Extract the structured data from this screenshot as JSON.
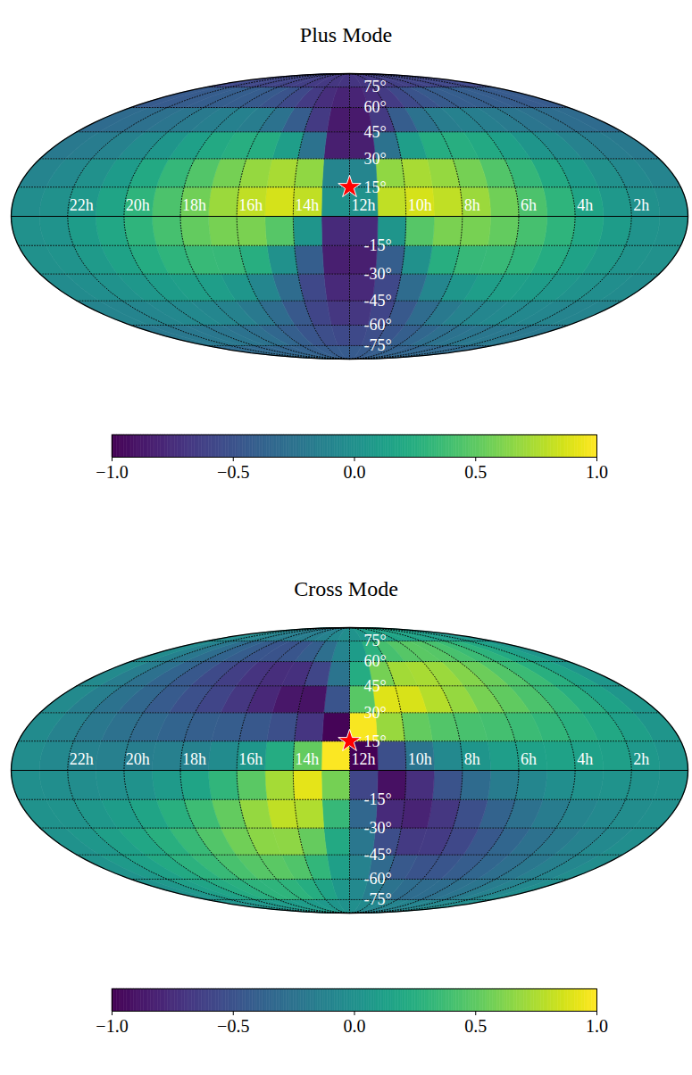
{
  "chart_data": [
    {
      "type": "heatmap",
      "title": "Plus Mode",
      "color": "viridis",
      "grid": true,
      "xlim": [
        24,
        0
      ],
      "ylim": [
        -90,
        90
      ],
      "xticks": [
        {
          "value": 22,
          "label": "22h"
        },
        {
          "value": 20,
          "label": "20h"
        },
        {
          "value": 18,
          "label": "18h"
        },
        {
          "value": 16,
          "label": "16h"
        },
        {
          "value": 14,
          "label": "14h"
        },
        {
          "value": 12,
          "label": "12h"
        },
        {
          "value": 10,
          "label": "10h"
        },
        {
          "value": 8,
          "label": "8h"
        },
        {
          "value": 6,
          "label": "6h"
        },
        {
          "value": 4,
          "label": "4h"
        },
        {
          "value": 2,
          "label": "2h"
        }
      ],
      "yticks": [
        {
          "value": 75,
          "label": "75°"
        },
        {
          "value": 60,
          "label": "60°"
        },
        {
          "value": 45,
          "label": "45°"
        },
        {
          "value": 30,
          "label": "30°"
        },
        {
          "value": 15,
          "label": "15°"
        },
        {
          "value": -15,
          "label": "-15°"
        },
        {
          "value": -30,
          "label": "-30°"
        },
        {
          "value": -45,
          "label": "-45°"
        },
        {
          "value": -60,
          "label": "-60°"
        },
        {
          "value": -75,
          "label": "-75°"
        }
      ],
      "x_edges": [
        0,
        1,
        2,
        3,
        4,
        5,
        6,
        7,
        8,
        9,
        10,
        11,
        12,
        13,
        14,
        15,
        16,
        17,
        18,
        19,
        20,
        21,
        22,
        23,
        24
      ],
      "y_edges": [
        -90,
        -75,
        -60,
        -45,
        -30,
        -15,
        0,
        15,
        30,
        45,
        60,
        75,
        90
      ],
      "cells": [
        [
          -0.31,
          -0.31,
          -0.32,
          -0.33,
          -0.34,
          -0.35,
          -0.37,
          -0.38,
          -0.4,
          -0.42,
          -0.43,
          -0.43,
          -0.43,
          -0.43,
          -0.42,
          -0.4,
          -0.38,
          -0.37,
          -0.35,
          -0.34,
          -0.33,
          -0.32,
          -0.31,
          -0.31
        ],
        [
          -0.2,
          -0.2,
          -0.2,
          -0.21,
          -0.22,
          -0.25,
          -0.28,
          -0.34,
          -0.4,
          -0.47,
          -0.53,
          -0.56,
          -0.56,
          -0.53,
          -0.47,
          -0.4,
          -0.34,
          -0.28,
          -0.25,
          -0.22,
          -0.21,
          -0.2,
          -0.2,
          -0.2
        ],
        [
          -0.1,
          -0.1,
          -0.08,
          -0.07,
          -0.06,
          -0.08,
          -0.11,
          -0.19,
          -0.3,
          -0.45,
          -0.59,
          -0.68,
          -0.68,
          -0.59,
          -0.45,
          -0.3,
          -0.19,
          -0.11,
          -0.08,
          -0.06,
          -0.07,
          -0.08,
          -0.1,
          -0.1
        ],
        [
          -0.04,
          -0.02,
          0.02,
          0.06,
          0.1,
          0.12,
          0.11,
          0.05,
          -0.08,
          -0.3,
          -0.57,
          -0.77,
          -0.77,
          -0.57,
          -0.3,
          -0.08,
          0.05,
          0.11,
          0.12,
          0.1,
          0.06,
          0.02,
          -0.02,
          -0.04
        ],
        [
          0,
          0.03,
          0.08,
          0.15,
          0.23,
          0.3,
          0.35,
          0.34,
          0.25,
          0,
          -0.41,
          -0.83,
          -0.83,
          -0.41,
          0,
          0.25,
          0.34,
          0.35,
          0.3,
          0.23,
          0.15,
          0.08,
          0.03,
          0
        ],
        [
          0,
          0.03,
          0.1,
          0.19,
          0.3,
          0.41,
          0.52,
          0.59,
          0.6,
          0.47,
          0.04,
          -0.76,
          -0.76,
          0.04,
          0.47,
          0.6,
          0.59,
          0.52,
          0.41,
          0.3,
          0.19,
          0.1,
          0.03,
          0
        ],
        [
          -0.03,
          0,
          0.07,
          0.17,
          0.3,
          0.43,
          0.57,
          0.7,
          0.81,
          0.87,
          0.81,
          0.01,
          0.01,
          0.81,
          0.87,
          0.81,
          0.7,
          0.57,
          0.43,
          0.3,
          0.17,
          0.07,
          0,
          -0.03
        ],
        [
          -0.1,
          -0.06,
          0,
          0.09,
          0.21,
          0.33,
          0.46,
          0.58,
          0.68,
          0.74,
          0.67,
          -0.09,
          -0.09,
          0.67,
          0.74,
          0.68,
          0.58,
          0.46,
          0.33,
          0.21,
          0.09,
          0,
          -0.06,
          -0.1
        ],
        [
          -0.19,
          -0.17,
          -0.11,
          -0.04,
          0.04,
          0.13,
          0.21,
          0.25,
          0.24,
          0.11,
          -0.25,
          -0.83,
          -0.83,
          -0.25,
          0.11,
          0.24,
          0.25,
          0.21,
          0.13,
          0.04,
          -0.04,
          -0.11,
          -0.17,
          -0.19
        ],
        [
          -0.31,
          -0.29,
          -0.26,
          -0.22,
          -0.18,
          -0.15,
          -0.13,
          -0.16,
          -0.25,
          -0.42,
          -0.66,
          -0.86,
          -0.86,
          -0.66,
          -0.42,
          -0.25,
          -0.16,
          -0.13,
          -0.15,
          -0.18,
          -0.22,
          -0.26,
          -0.29,
          -0.31
        ],
        [
          -0.43,
          -0.43,
          -0.42,
          -0.41,
          -0.41,
          -0.42,
          -0.44,
          -0.49,
          -0.56,
          -0.65,
          -0.74,
          -0.8,
          -0.8,
          -0.74,
          -0.65,
          -0.56,
          -0.49,
          -0.44,
          -0.42,
          -0.41,
          -0.41,
          -0.42,
          -0.43,
          -0.43
        ],
        [
          -0.57,
          -0.57,
          -0.57,
          -0.58,
          -0.59,
          -0.6,
          -0.61,
          -0.63,
          -0.65,
          -0.67,
          -0.68,
          -0.69,
          -0.69,
          -0.68,
          -0.67,
          -0.65,
          -0.63,
          -0.61,
          -0.6,
          -0.59,
          -0.58,
          -0.57,
          -0.57,
          -0.57
        ]
      ],
      "colorbar": {
        "range": [
          -1,
          1
        ],
        "ticks": [
          {
            "value": -1,
            "label": "−1.0"
          },
          {
            "value": -0.5,
            "label": "−0.5"
          },
          {
            "value": 0,
            "label": "0.0"
          },
          {
            "value": 0.5,
            "label": "0.5"
          },
          {
            "value": 1,
            "label": "1.0"
          }
        ]
      },
      "series": [
        {
          "x": [
            12
          ],
          "y": [
            15
          ],
          "marker": "star",
          "color": "red"
        }
      ]
    },
    {
      "type": "heatmap",
      "title": "Cross Mode",
      "color": "viridis",
      "grid": true,
      "xlim": [
        24,
        0
      ],
      "ylim": [
        -90,
        90
      ],
      "xticks": [
        {
          "value": 22,
          "label": "22h"
        },
        {
          "value": 20,
          "label": "20h"
        },
        {
          "value": 18,
          "label": "18h"
        },
        {
          "value": 16,
          "label": "16h"
        },
        {
          "value": 14,
          "label": "14h"
        },
        {
          "value": 12,
          "label": "12h"
        },
        {
          "value": 10,
          "label": "10h"
        },
        {
          "value": 8,
          "label": "8h"
        },
        {
          "value": 6,
          "label": "6h"
        },
        {
          "value": 4,
          "label": "4h"
        },
        {
          "value": 2,
          "label": "2h"
        }
      ],
      "yticks": [
        {
          "value": 75,
          "label": "75°"
        },
        {
          "value": 60,
          "label": "60°"
        },
        {
          "value": 45,
          "label": "45°"
        },
        {
          "value": 30,
          "label": "30°"
        },
        {
          "value": 15,
          "label": "15°"
        },
        {
          "value": -15,
          "label": "-15°"
        },
        {
          "value": -30,
          "label": "-30°"
        },
        {
          "value": -45,
          "label": "-45°"
        },
        {
          "value": -60,
          "label": "-60°"
        },
        {
          "value": -75,
          "label": "-75°"
        }
      ],
      "x_edges": [
        0,
        1,
        2,
        3,
        4,
        5,
        6,
        7,
        8,
        9,
        10,
        11,
        12,
        13,
        14,
        15,
        16,
        17,
        18,
        19,
        20,
        21,
        22,
        23,
        24
      ],
      "y_edges": [
        -90,
        -75,
        -60,
        -45,
        -30,
        -15,
        0,
        15,
        30,
        45,
        60,
        75,
        90
      ],
      "cells": [
        [
          -0.01,
          -0.03,
          -0.05,
          -0.07,
          -0.09,
          -0.1,
          -0.1,
          -0.1,
          -0.09,
          -0.07,
          -0.04,
          -0.01,
          0.01,
          0.04,
          0.07,
          0.09,
          0.1,
          0.1,
          0.1,
          0.09,
          0.07,
          0.05,
          0.03,
          0.01
        ],
        [
          -0.02,
          -0.07,
          -0.12,
          -0.17,
          -0.22,
          -0.26,
          -0.29,
          -0.3,
          -0.29,
          -0.24,
          -0.16,
          -0.06,
          0.06,
          0.16,
          0.24,
          0.29,
          0.3,
          0.29,
          0.26,
          0.22,
          0.17,
          0.12,
          0.07,
          0.02
        ],
        [
          -0.03,
          -0.08,
          -0.14,
          -0.21,
          -0.28,
          -0.35,
          -0.42,
          -0.47,
          -0.49,
          -0.45,
          -0.32,
          -0.12,
          0.12,
          0.32,
          0.45,
          0.49,
          0.47,
          0.42,
          0.35,
          0.28,
          0.21,
          0.14,
          0.08,
          0.03
        ],
        [
          -0.02,
          -0.06,
          -0.12,
          -0.18,
          -0.26,
          -0.35,
          -0.46,
          -0.57,
          -0.65,
          -0.66,
          -0.53,
          -0.21,
          0.21,
          0.53,
          0.66,
          0.65,
          0.57,
          0.46,
          0.35,
          0.26,
          0.18,
          0.12,
          0.06,
          0.02
        ],
        [
          -0.01,
          -0.03,
          -0.06,
          -0.1,
          -0.17,
          -0.26,
          -0.37,
          -0.52,
          -0.68,
          -0.81,
          -0.76,
          -0.34,
          0.34,
          0.76,
          0.81,
          0.68,
          0.52,
          0.37,
          0.26,
          0.17,
          0.1,
          0.06,
          0.03,
          0.01
        ],
        [
          0.01,
          0.02,
          0.03,
          0.01,
          -0.02,
          -0.08,
          -0.17,
          -0.31,
          -0.49,
          -0.73,
          -0.92,
          -0.58,
          0.58,
          0.92,
          0.73,
          0.49,
          0.31,
          0.17,
          0.08,
          0.02,
          -0.01,
          -0.03,
          -0.02,
          -0.01
        ],
        [
          0.03,
          0.07,
          0.12,
          0.14,
          0.15,
          0.14,
          0.11,
          0.04,
          -0.06,
          -0.23,
          -0.52,
          -0.99,
          0.99,
          0.52,
          0.23,
          0.06,
          -0.04,
          -0.11,
          -0.14,
          -0.15,
          -0.14,
          -0.12,
          -0.07,
          -0.03
        ],
        [
          0.04,
          0.12,
          0.2,
          0.26,
          0.32,
          0.36,
          0.4,
          0.42,
          0.46,
          0.52,
          0.69,
          0.98,
          -0.98,
          -0.69,
          -0.52,
          -0.46,
          -0.42,
          -0.4,
          -0.36,
          -0.32,
          -0.26,
          -0.2,
          -0.12,
          -0.04
        ],
        [
          0.05,
          0.15,
          0.25,
          0.34,
          0.43,
          0.51,
          0.59,
          0.68,
          0.78,
          0.88,
          0.9,
          0.48,
          -0.48,
          -0.9,
          -0.88,
          -0.78,
          -0.68,
          -0.59,
          -0.51,
          -0.43,
          -0.34,
          -0.25,
          -0.15,
          -0.05
        ],
        [
          0.05,
          0.16,
          0.26,
          0.36,
          0.46,
          0.55,
          0.63,
          0.7,
          0.74,
          0.72,
          0.58,
          0.23,
          -0.23,
          -0.58,
          -0.72,
          -0.74,
          -0.7,
          -0.63,
          -0.55,
          -0.46,
          -0.36,
          -0.26,
          -0.16,
          -0.05
        ],
        [
          0.04,
          0.13,
          0.21,
          0.29,
          0.36,
          0.42,
          0.47,
          0.49,
          0.47,
          0.41,
          0.28,
          0.1,
          -0.1,
          -0.28,
          -0.41,
          -0.47,
          -0.49,
          -0.47,
          -0.42,
          -0.36,
          -0.29,
          -0.21,
          -0.13,
          -0.04
        ],
        [
          0.02,
          0.06,
          0.09,
          0.12,
          0.15,
          0.16,
          0.17,
          0.16,
          0.15,
          0.11,
          0.07,
          0.03,
          -0.03,
          -0.07,
          -0.11,
          -0.15,
          -0.16,
          -0.17,
          -0.16,
          -0.15,
          -0.12,
          -0.09,
          -0.06,
          -0.02
        ]
      ],
      "colorbar": {
        "range": [
          -1,
          1
        ],
        "ticks": [
          {
            "value": -1,
            "label": "−1.0"
          },
          {
            "value": -0.5,
            "label": "−0.5"
          },
          {
            "value": 0,
            "label": "0.0"
          },
          {
            "value": 0.5,
            "label": "0.5"
          },
          {
            "value": 1,
            "label": "1.0"
          }
        ]
      },
      "series": [
        {
          "x": [
            12
          ],
          "y": [
            15
          ],
          "marker": "star",
          "color": "red"
        }
      ]
    }
  ]
}
